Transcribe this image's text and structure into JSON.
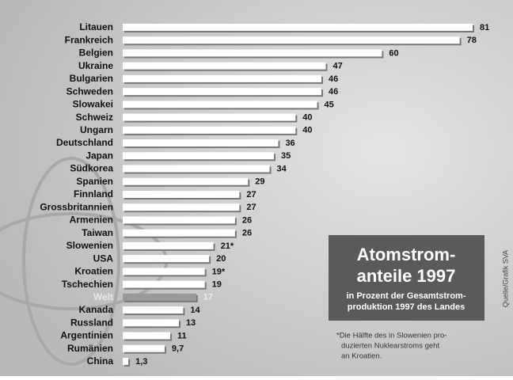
{
  "chart_data": {
    "type": "bar",
    "orientation": "horizontal",
    "title_lines": [
      "Atomstrom-",
      "anteile 1997"
    ],
    "subtitle_lines": [
      "in Prozent der Gesamtstrom-",
      "produktion 1997 des Landes"
    ],
    "footnote_lines": [
      "*Die Hälfte des in Slowenien pro-",
      "duzierten Nuklearstroms geht",
      "an Kroatien."
    ],
    "source": "Quelle/Grafik SVA",
    "categories": [
      "Litauen",
      "Frankreich",
      "Belgien",
      "Ukraine",
      "Bulgarien",
      "Schweden",
      "Slowakei",
      "Schweiz",
      "Ungarn",
      "Deutschland",
      "Japan",
      "Südkorea",
      "Spanien",
      "Finnland",
      "Grossbritannien",
      "Armenien",
      "Taiwan",
      "Slowenien",
      "USA",
      "Kroatien",
      "Tschechien",
      "Welt",
      "Kanada",
      "Russland",
      "Argentinien",
      "Rumänien",
      "China"
    ],
    "values": [
      81,
      78,
      60,
      47,
      46,
      46,
      45,
      40,
      40,
      36,
      35,
      34,
      29,
      27,
      27,
      26,
      26,
      21,
      20,
      19,
      19,
      17,
      14,
      13,
      11,
      9.7,
      1.3
    ],
    "value_labels": [
      "81",
      "78",
      "60",
      "47",
      "46",
      "46",
      "45",
      "40",
      "40",
      "36",
      "35",
      "34",
      "29",
      "27",
      "27",
      "26",
      "26",
      "21*",
      "20",
      "19*",
      "19",
      "17",
      "14",
      "13",
      "11",
      "9,7",
      "1,3"
    ],
    "colors": [
      "#ffffff",
      "#ffffff",
      "#ffffff",
      "#ffffff",
      "#ffffff",
      "#ffffff",
      "#ffffff",
      "#ffffff",
      "#ffffff",
      "#ffffff",
      "#ffffff",
      "#ffffff",
      "#ffffff",
      "#ffffff",
      "#ffffff",
      "#ffffff",
      "#ffffff",
      "#ffffff",
      "#ffffff",
      "#ffffff",
      "#ffffff",
      "#9a9a9a",
      "#ffffff",
      "#ffffff",
      "#ffffff",
      "#ffffff",
      "#ffffff"
    ]
  }
}
